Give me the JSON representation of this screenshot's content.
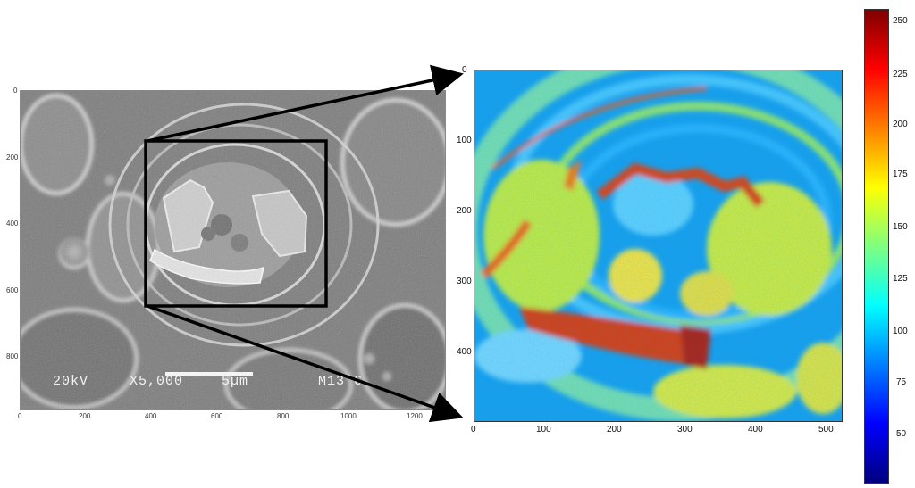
{
  "sem_panel": {
    "overlay": {
      "voltage": "20kV",
      "magnification": "X5,000",
      "scale": "5µm",
      "code": "M13 C"
    },
    "x_ticks": [
      "0",
      "200",
      "400",
      "600",
      "800",
      "1000",
      "1200"
    ],
    "y_ticks": [
      "0",
      "200",
      "400",
      "600",
      "800"
    ]
  },
  "heatmap_panel": {
    "x_ticks": [
      "0",
      "100",
      "200",
      "300",
      "400",
      "500"
    ],
    "y_ticks": [
      "0",
      "100",
      "200",
      "300",
      "400"
    ]
  },
  "colorbar": {
    "ticks": [
      "250",
      "225",
      "200",
      "175",
      "150",
      "125",
      "100",
      "75",
      "50"
    ],
    "colormap": [
      "#00007f",
      "#0000ff",
      "#007fff",
      "#00ffff",
      "#7fff7f",
      "#ffff00",
      "#ff7f00",
      "#ff0000",
      "#7f0000"
    ]
  },
  "colors": {
    "box": "#000000",
    "arrow": "#000000"
  }
}
